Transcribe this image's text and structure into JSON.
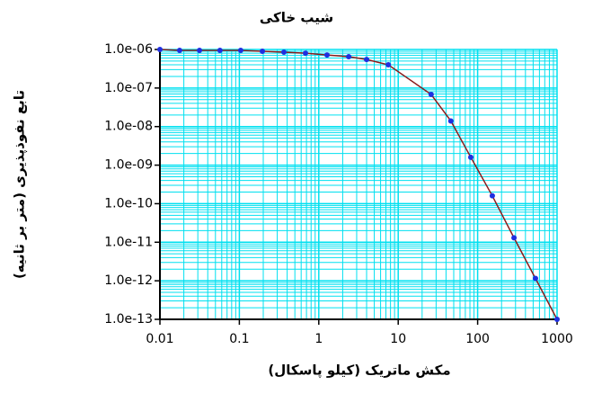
{
  "chart_data": {
    "type": "line",
    "title": "شیب خاکی",
    "x_label": "مکش ماتریک (کیلو پاسکال)",
    "y_label": "تابع نفوذپذیری (متر بر ثانیه)",
    "x": [
      0.01,
      0.0177,
      0.0315,
      0.057,
      0.104,
      0.195,
      0.364,
      0.68,
      1.27,
      2.38,
      4.0,
      7.5,
      26,
      46,
      82,
      153,
      287,
      535,
      1000
    ],
    "series": [
      {
        "values": [
          1e-06,
          9.5e-07,
          9.5e-07,
          9.5e-07,
          9.5e-07,
          9e-07,
          8.5e-07,
          8e-07,
          7.2e-07,
          6.5e-07,
          5.5e-07,
          4e-07,
          6.8e-08,
          1.4e-08,
          1.6e-09,
          1.6e-10,
          1.3e-11,
          1.15e-12,
          1e-13
        ],
        "line_color": "#8b1a1a",
        "marker_color": "#1f2fe0"
      }
    ],
    "xlim": [
      0.01,
      1000
    ],
    "ylim": [
      1e-13,
      1e-06
    ],
    "xticks": [
      0.01,
      0.1,
      1,
      10,
      100,
      1000
    ],
    "yticks": [
      {
        "value": 1e-13,
        "label": "1.0e-13"
      },
      {
        "value": 1e-12,
        "label": "1.0e-12"
      },
      {
        "value": 1e-11,
        "label": "1.0e-11"
      },
      {
        "value": 1e-10,
        "label": "1.0e-10"
      },
      {
        "value": 1e-09,
        "label": "1.0e-09"
      },
      {
        "value": 1e-08,
        "label": "1.0e-08"
      },
      {
        "value": 1e-07,
        "label": "1.0e-07"
      },
      {
        "value": 1e-06,
        "label": "1.0e-06"
      }
    ],
    "xscale": "log",
    "yscale": "log",
    "grid": true,
    "minor_grid": true,
    "grid_color": "#00e0f0"
  }
}
